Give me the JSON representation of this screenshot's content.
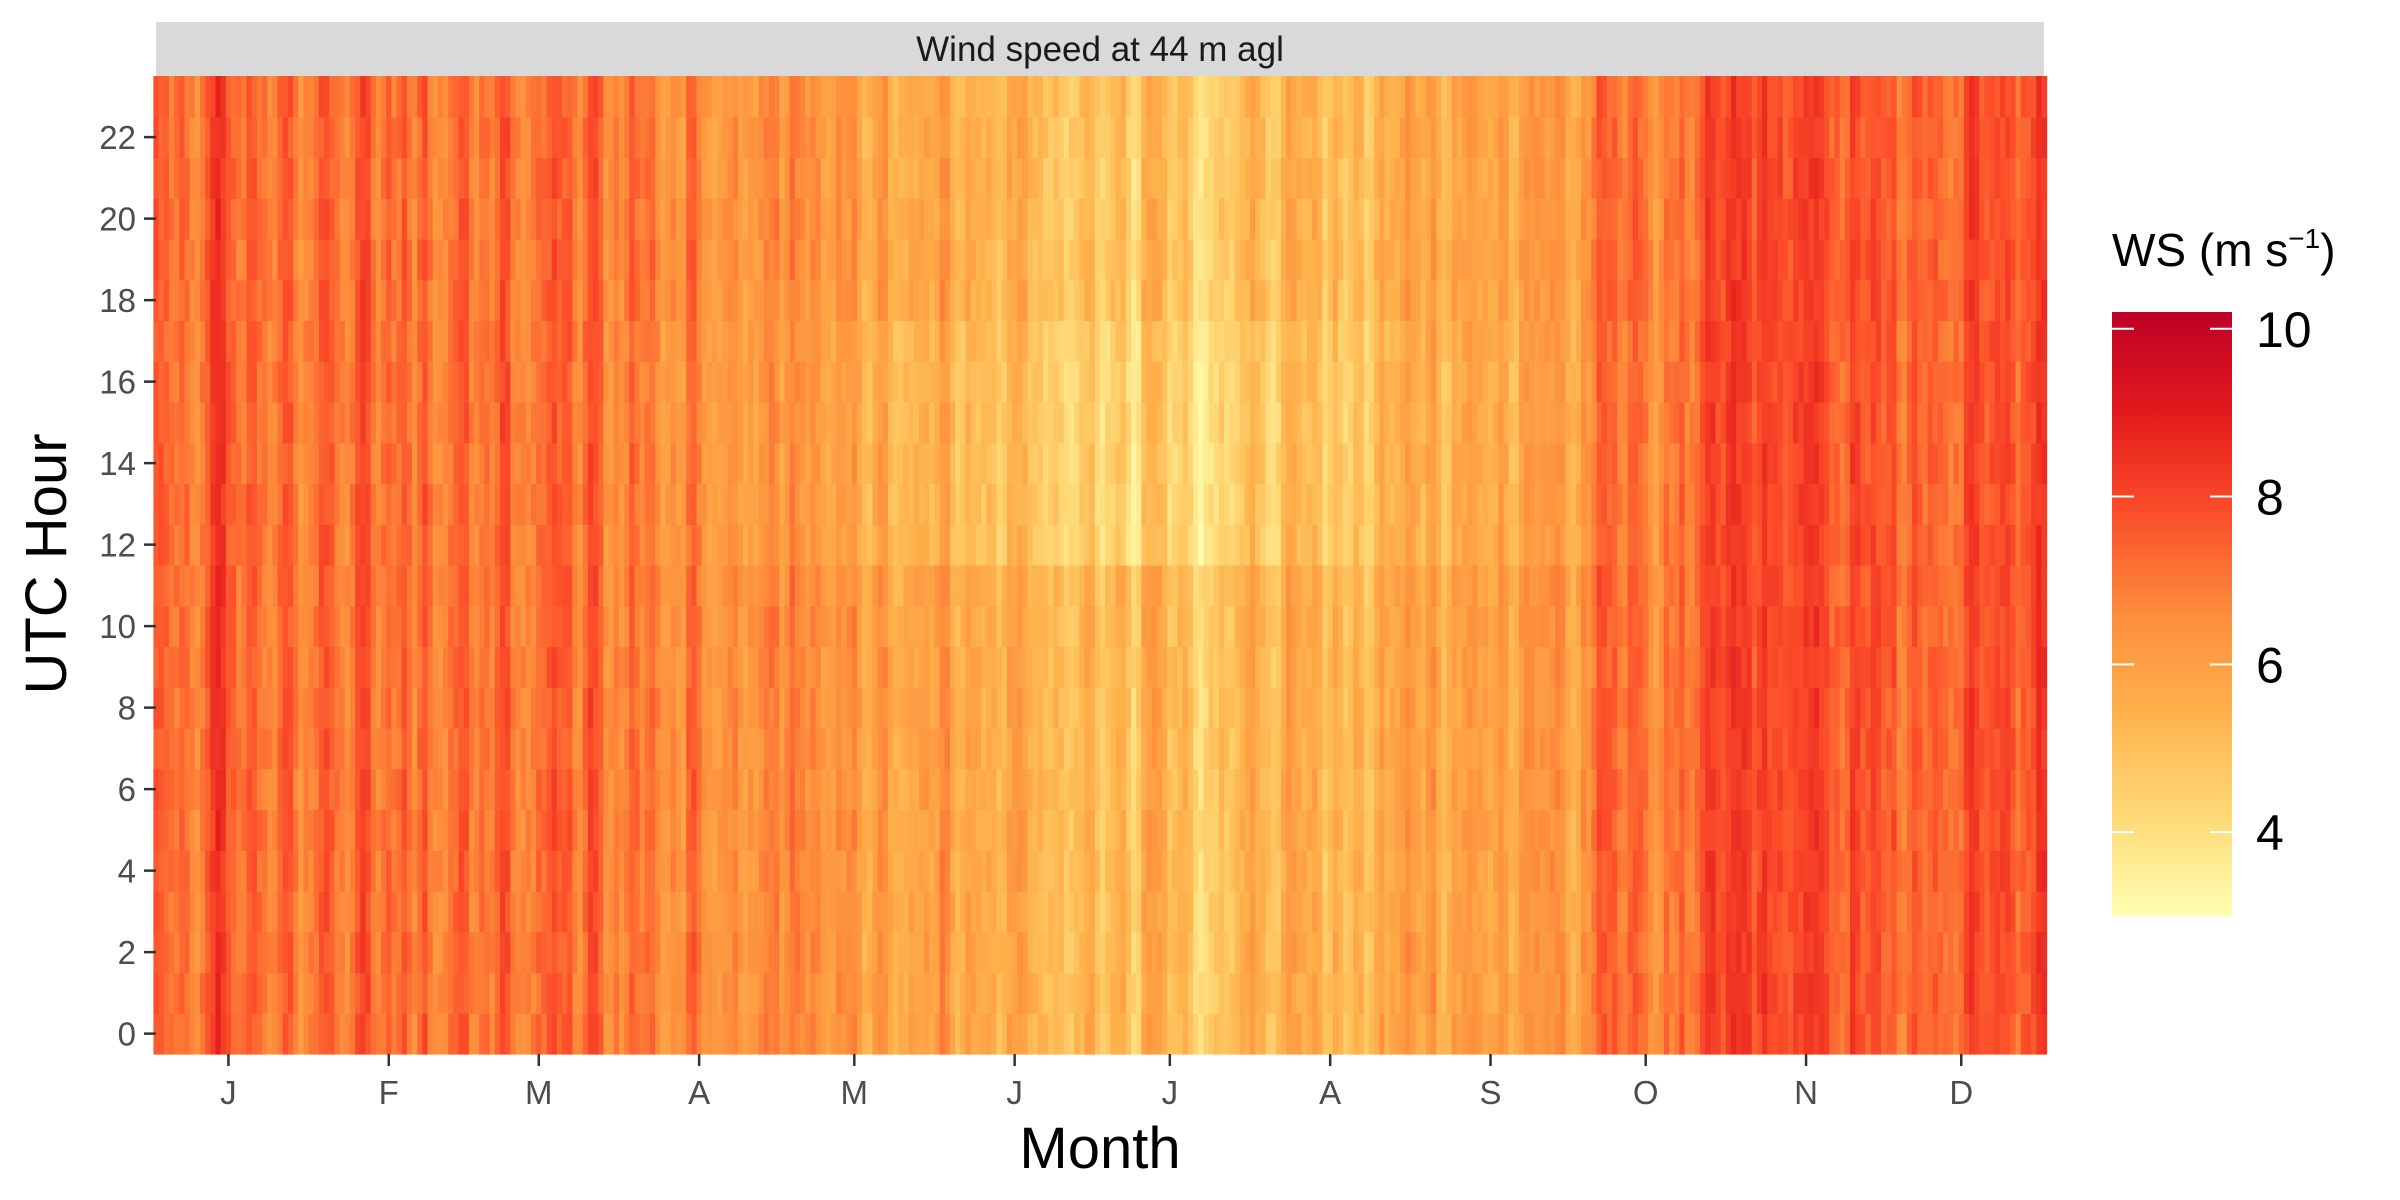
{
  "chart_data": {
    "type": "heatmap",
    "facet_title": "Wind speed at 44 m agl",
    "xlabel": "Month",
    "ylabel": "UTC Hour",
    "x_ticks": [
      "J",
      "F",
      "M",
      "A",
      "M",
      "J",
      "J",
      "A",
      "S",
      "O",
      "N",
      "D"
    ],
    "y_ticks": [
      0,
      2,
      4,
      6,
      8,
      10,
      12,
      14,
      16,
      18,
      20,
      22
    ],
    "xlim_days": [
      1,
      366
    ],
    "ylim_hours": [
      -0.5,
      23.5
    ],
    "days_per_year": 366,
    "hours": [
      0,
      1,
      2,
      3,
      4,
      5,
      6,
      7,
      8,
      9,
      10,
      11,
      12,
      13,
      14,
      15,
      16,
      17,
      18,
      19,
      20,
      21,
      22,
      23
    ],
    "legend": {
      "title_prefix": "WS (m s",
      "title_superscript": "−1",
      "title_suffix": ")",
      "placement": "right",
      "range": [
        3.0,
        10.2
      ],
      "ticks": [
        4,
        6,
        8,
        10
      ],
      "palette": [
        "#FFFFB2",
        "#FED976",
        "#FEB24C",
        "#FD8D3C",
        "#FC4E2A",
        "#E31A1C",
        "#BD0026"
      ]
    },
    "monthly_mean_ws": [
      {
        "month": "J",
        "mean": 7.3
      },
      {
        "month": "F",
        "mean": 7.0
      },
      {
        "month": "M",
        "mean": 7.2
      },
      {
        "month": "A",
        "mean": 6.9
      },
      {
        "month": "M",
        "mean": 6.3
      },
      {
        "month": "J",
        "mean": 5.4
      },
      {
        "month": "J",
        "mean": 5.3
      },
      {
        "month": "A",
        "mean": 5.3
      },
      {
        "month": "S",
        "mean": 5.9
      },
      {
        "month": "O",
        "mean": 7.0
      },
      {
        "month": "N",
        "mean": 7.7
      },
      {
        "month": "D",
        "mean": 7.4
      }
    ]
  }
}
